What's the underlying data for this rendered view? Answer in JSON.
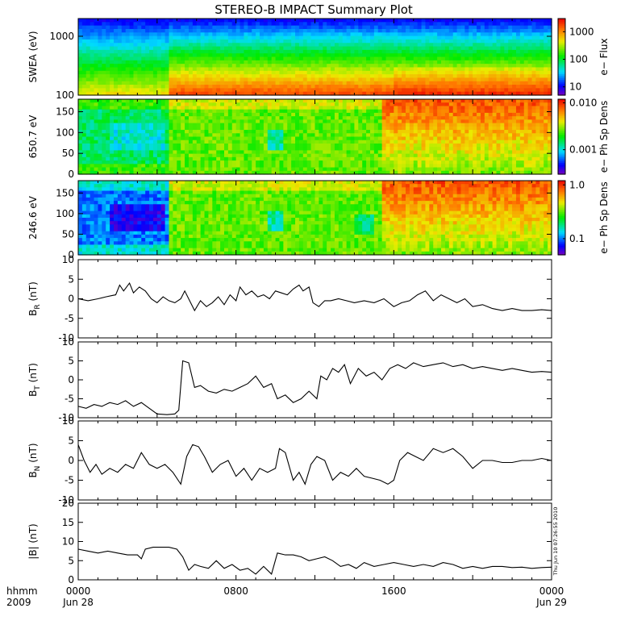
{
  "title": "STEREO-B IMPACT Summary Plot",
  "side_stamp": "Thu Jun 10 07:26:55 2010",
  "time_axis": {
    "ticks": [
      {
        "hhmm": "0000",
        "date": "Jun 28",
        "hour": 0
      },
      {
        "hhmm": "0800",
        "date": "",
        "hour": 8
      },
      {
        "hhmm": "1600",
        "date": "",
        "hour": 16
      },
      {
        "hhmm": "0000",
        "date": "Jun 29",
        "hour": 24
      }
    ],
    "row_label_top": "hhmm",
    "row_label_bottom": "2009",
    "range_hours": [
      0,
      24
    ]
  },
  "chart_data": [
    {
      "type": "heatmap",
      "ylabel": "SWEA (eV)",
      "yscale": "log",
      "ylim": [
        100,
        2000
      ],
      "yticks": [
        "100",
        "1000"
      ],
      "colorbar": {
        "label": "e− Flux",
        "scale": "log",
        "ticks": [
          "10",
          "100",
          "1000"
        ],
        "range": [
          5,
          3000
        ]
      },
      "boundary_hour": 4.6
    },
    {
      "type": "heatmap",
      "ylabel": "650.7 eV",
      "ylim": [
        0,
        180
      ],
      "yticks": [
        "0",
        "50",
        "100",
        "150"
      ],
      "colorbar": {
        "label": "e− Ph Sp Dens",
        "scale": "log",
        "ticks": [
          "0.001",
          "0.010"
        ],
        "range": [
          0.0003,
          0.012
        ]
      }
    },
    {
      "type": "heatmap",
      "ylabel": "246.6 eV",
      "ylim": [
        0,
        180
      ],
      "yticks": [
        "0",
        "50",
        "100",
        "150"
      ],
      "colorbar": {
        "label": "e− Ph Sp Dens",
        "scale": "log",
        "ticks": [
          "0.1",
          "1.0"
        ],
        "range": [
          0.05,
          1.2
        ]
      }
    },
    {
      "type": "line",
      "ylabel_main": "B",
      "ylabel_sub": "R",
      "ylabel_unit": " (nT)",
      "ylim": [
        -10,
        10
      ],
      "yticks": [
        "-10",
        "-5",
        "0",
        "5",
        "10"
      ],
      "x": [
        0,
        0.5,
        1,
        1.4,
        1.7,
        1.9,
        2.1,
        2.3,
        2.6,
        2.8,
        3.1,
        3.4,
        3.7,
        4.0,
        4.3,
        4.6,
        4.9,
        5.2,
        5.4,
        5.7,
        5.9,
        6.2,
        6.5,
        6.8,
        7.1,
        7.4,
        7.7,
        8.0,
        8.2,
        8.5,
        8.8,
        9.1,
        9.4,
        9.7,
        10.0,
        10.3,
        10.6,
        10.9,
        11.2,
        11.4,
        11.7,
        11.9,
        12.2,
        12.5,
        12.8,
        13.2,
        13.6,
        14,
        14.5,
        15,
        15.5,
        16,
        16.4,
        16.8,
        17.2,
        17.6,
        18,
        18.4,
        18.8,
        19.2,
        19.6,
        20,
        20.5,
        21,
        21.5,
        22,
        22.5,
        23,
        23.5,
        24
      ],
      "y": [
        0,
        -0.5,
        0,
        0.5,
        0.8,
        1,
        3.5,
        2,
        4,
        1.5,
        3,
        2,
        0,
        -1,
        0.5,
        -0.5,
        -1,
        0,
        2,
        -1,
        -3,
        -0.5,
        -2,
        -1,
        0.5,
        -1.5,
        1,
        -0.5,
        3,
        1,
        2,
        0.5,
        1,
        0,
        2,
        1.5,
        1,
        2.5,
        3.5,
        2,
        3,
        -1,
        -2,
        -0.5,
        -0.5,
        0,
        -0.5,
        -1,
        -0.5,
        -1,
        0,
        -2,
        -1,
        -0.5,
        1,
        2,
        -0.5,
        1,
        0,
        -1,
        0,
        -2,
        -1.5,
        -2.5,
        -3,
        -2.5,
        -3,
        -3,
        -2.8,
        -3
      ]
    },
    {
      "type": "line",
      "ylabel_main": "B",
      "ylabel_sub": "T",
      "ylabel_unit": " (nT)",
      "ylim": [
        -10,
        10
      ],
      "yticks": [
        "-10",
        "-5",
        "0",
        "5",
        "10"
      ],
      "x": [
        0,
        0.4,
        0.8,
        1.2,
        1.6,
        2,
        2.4,
        2.8,
        3.2,
        3.6,
        4,
        4.5,
        4.9,
        5.1,
        5.3,
        5.6,
        5.9,
        6.2,
        6.6,
        7,
        7.4,
        7.8,
        8.2,
        8.6,
        9,
        9.4,
        9.8,
        10.1,
        10.5,
        10.9,
        11.3,
        11.7,
        12.1,
        12.3,
        12.6,
        12.9,
        13.2,
        13.5,
        13.8,
        14.2,
        14.6,
        15,
        15.4,
        15.8,
        16.2,
        16.6,
        17,
        17.5,
        18,
        18.5,
        19,
        19.5,
        20,
        20.5,
        21,
        21.5,
        22,
        22.5,
        23,
        23.5,
        24
      ],
      "y": [
        -7,
        -7.5,
        -6.5,
        -7,
        -6,
        -6.5,
        -5.5,
        -7,
        -6,
        -7.5,
        -9,
        -9.2,
        -9,
        -8,
        5,
        4.5,
        -2,
        -1.5,
        -3,
        -3.5,
        -2.5,
        -3,
        -2,
        -1,
        1,
        -2,
        -1,
        -5,
        -4,
        -6,
        -5,
        -3,
        -5,
        1,
        0,
        3,
        2,
        4,
        -1,
        3,
        1,
        2,
        0,
        3,
        4,
        3,
        4.5,
        3.5,
        4,
        4.5,
        3.5,
        4,
        3,
        3.5,
        3,
        2.5,
        3,
        2.5,
        2,
        2.2,
        2
      ]
    },
    {
      "type": "line",
      "ylabel_main": "B",
      "ylabel_sub": "N",
      "ylabel_unit": " (nT)",
      "ylim": [
        -10,
        10
      ],
      "yticks": [
        "-10",
        "-5",
        "0",
        "5",
        "10"
      ],
      "x": [
        0,
        0.3,
        0.6,
        0.9,
        1.2,
        1.6,
        2,
        2.4,
        2.8,
        3.2,
        3.6,
        4,
        4.4,
        4.8,
        5.2,
        5.5,
        5.8,
        6.1,
        6.4,
        6.8,
        7.2,
        7.6,
        8,
        8.4,
        8.8,
        9.2,
        9.6,
        10,
        10.2,
        10.5,
        10.9,
        11.2,
        11.5,
        11.8,
        12.1,
        12.5,
        12.9,
        13.3,
        13.7,
        14.1,
        14.5,
        14.9,
        15.3,
        15.7,
        16,
        16.3,
        16.7,
        17.1,
        17.5,
        18,
        18.5,
        19,
        19.5,
        20,
        20.5,
        21,
        21.5,
        22,
        22.5,
        23,
        23.5,
        24
      ],
      "y": [
        4,
        0,
        -3,
        -1,
        -3.5,
        -2,
        -3,
        -1,
        -2,
        2,
        -1,
        -2,
        -1,
        -3,
        -6,
        1,
        4,
        3.5,
        1,
        -3,
        -1,
        0,
        -4,
        -2,
        -5,
        -2,
        -3,
        -2,
        3,
        2,
        -5,
        -3,
        -6,
        -1,
        1,
        0,
        -5,
        -3,
        -4,
        -2,
        -4,
        -4.5,
        -5,
        -6,
        -5,
        0,
        2,
        1,
        0,
        3,
        2,
        3,
        1,
        -2,
        0,
        0,
        -0.5,
        -0.5,
        0,
        0,
        0.5,
        0
      ]
    },
    {
      "type": "line",
      "ylabel_main": "|B| (nT)",
      "ylim": [
        0,
        20
      ],
      "yticks": [
        "0",
        "5",
        "10",
        "15",
        "20"
      ],
      "x": [
        0,
        0.5,
        1,
        1.5,
        2,
        2.5,
        3,
        3.2,
        3.4,
        3.8,
        4.2,
        4.6,
        5,
        5.3,
        5.6,
        5.9,
        6.2,
        6.6,
        7,
        7.4,
        7.8,
        8.2,
        8.6,
        9,
        9.4,
        9.8,
        10.1,
        10.5,
        10.9,
        11.3,
        11.7,
        12.1,
        12.5,
        12.9,
        13.3,
        13.7,
        14.1,
        14.5,
        15,
        15.5,
        16,
        16.5,
        17,
        17.5,
        18,
        18.5,
        19,
        19.5,
        20,
        20.5,
        21,
        21.5,
        22,
        22.5,
        23,
        23.5,
        24
      ],
      "y": [
        8,
        7.5,
        7,
        7.5,
        7,
        6.5,
        6.5,
        5.5,
        8,
        8.5,
        8.5,
        8.5,
        8,
        6,
        2.5,
        4,
        3.5,
        3,
        5,
        3,
        4,
        2.5,
        3,
        1.5,
        3.5,
        1.5,
        7,
        6.5,
        6.5,
        6,
        5,
        5.5,
        6,
        5,
        3.5,
        4,
        3,
        4.5,
        3.5,
        4,
        4.5,
        4,
        3.5,
        4,
        3.5,
        4.5,
        4,
        3,
        3.5,
        3,
        3.5,
        3.5,
        3.2,
        3.3,
        3,
        3.2,
        3.3
      ]
    }
  ]
}
